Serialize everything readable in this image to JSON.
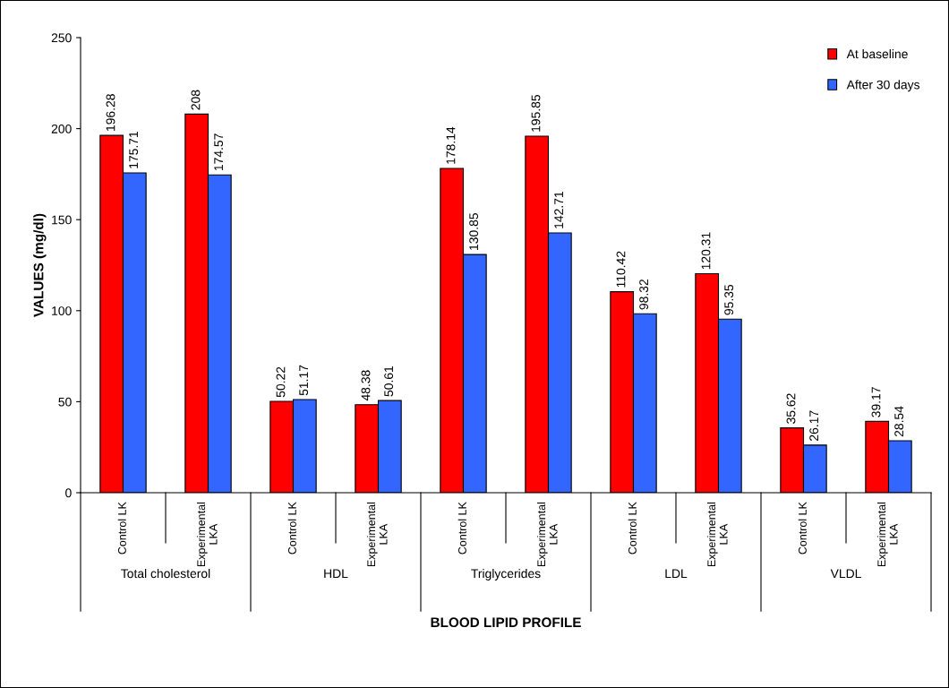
{
  "chart_data": {
    "type": "bar",
    "xlabel": "BLOOD LIPID PROFILE",
    "ylabel": "VALUES (mg/dl)",
    "categories": [
      "Control LK",
      "Experimental\nLKA",
      "Control LK",
      "Experimental\nLKA",
      "Control LK",
      "Experimental\nLKA",
      "Control LK",
      "Experimental\nLKA",
      "Control LK",
      "Experimental\nLKA"
    ],
    "annotations": [
      "Total cholesterol",
      "HDL",
      "Triglycerides",
      "LDL",
      "VLDL"
    ],
    "series": [
      {
        "name": "At baseline",
        "color": "#ff0000",
        "values": [
          196.28,
          208,
          50.22,
          48.38,
          178.14,
          195.85,
          110.42,
          120.31,
          35.62,
          39.17
        ]
      },
      {
        "name": "After 30 days",
        "color": "#3366ff",
        "values": [
          175.71,
          174.57,
          51.17,
          50.61,
          130.85,
          142.71,
          98.32,
          95.35,
          26.17,
          28.54
        ]
      }
    ],
    "ylim": [
      0,
      250
    ],
    "yticks": [
      0,
      50,
      100,
      150,
      200,
      250
    ],
    "data_labels": true,
    "legend": "top right",
    "grid": false
  }
}
